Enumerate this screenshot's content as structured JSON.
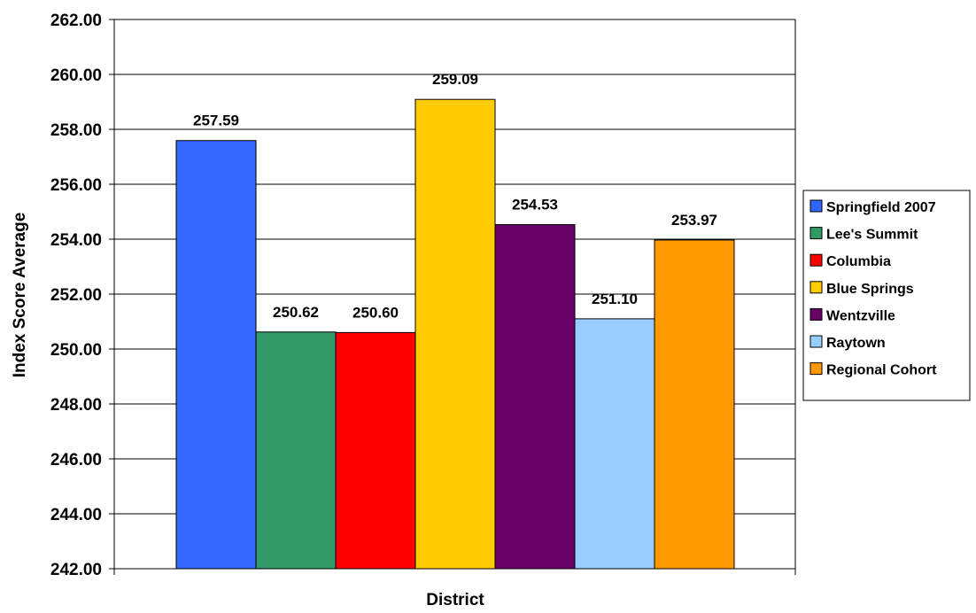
{
  "chart_data": {
    "type": "bar",
    "title": "",
    "xlabel": "District",
    "ylabel": "Index Score Average",
    "ylim": [
      242,
      262
    ],
    "ytick_step": 2,
    "ytick_labels": [
      "242.00",
      "244.00",
      "246.00",
      "248.00",
      "250.00",
      "252.00",
      "254.00",
      "256.00",
      "258.00",
      "260.00",
      "262.00"
    ],
    "grid": true,
    "legend_position": "right",
    "series": [
      {
        "name": "Springfield 2007",
        "value": 257.59,
        "label": "257.59",
        "color": "#3366FF"
      },
      {
        "name": "Lee's Summit",
        "value": 250.62,
        "label": "250.62",
        "color": "#339966"
      },
      {
        "name": "Columbia",
        "value": 250.6,
        "label": "250.60",
        "color": "#FF0000"
      },
      {
        "name": "Blue Springs",
        "value": 259.09,
        "label": "259.09",
        "color": "#FFCC00"
      },
      {
        "name": "Wentzville",
        "value": 254.53,
        "label": "254.53",
        "color": "#660066"
      },
      {
        "name": "Raytown",
        "value": 251.1,
        "label": "251.10",
        "color": "#99CCFF"
      },
      {
        "name": "Regional Cohort",
        "value": 253.97,
        "label": "253.97",
        "color": "#FF9900"
      }
    ]
  }
}
